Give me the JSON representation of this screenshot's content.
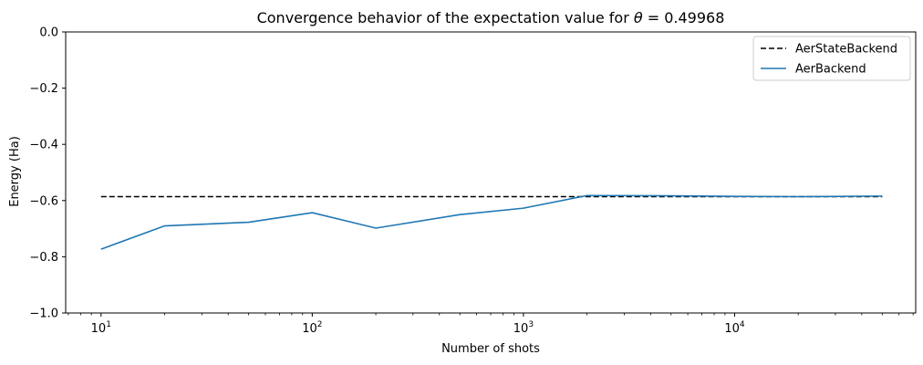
{
  "chart_data": {
    "type": "line",
    "title": "Convergence behavior of the expectation value for",
    "title_theta": "θ",
    "title_value": " = 0.49968",
    "xlabel": "Number of shots",
    "ylabel": "Energy (Ha)",
    "xscale": "log",
    "xlim": [
      6.8,
      72000
    ],
    "ylim": [
      -1.0,
      0.0
    ],
    "yticks": [
      "−1.0",
      "−0.8",
      "−0.6",
      "−0.4",
      "−0.2",
      "0.0"
    ],
    "xticks": [
      {
        "base": "10",
        "exp": "1"
      },
      {
        "base": "10",
        "exp": "2"
      },
      {
        "base": "10",
        "exp": "3"
      },
      {
        "base": "10",
        "exp": "4"
      }
    ],
    "grid": false,
    "legend_position": "top-right",
    "series": [
      {
        "name": "AerStateBackend",
        "color": "#000000",
        "dashed": true,
        "x": [
          10,
          50000
        ],
        "y": [
          -0.586,
          -0.586
        ]
      },
      {
        "name": "AerBackend",
        "color": "#1f77b4",
        "dashed": false,
        "x": [
          10,
          20,
          50,
          100,
          200,
          500,
          1000,
          2000,
          5000,
          10000,
          20000,
          50000
        ],
        "y": [
          -0.773,
          -0.69,
          -0.677,
          -0.643,
          -0.698,
          -0.65,
          -0.627,
          -0.582,
          -0.583,
          -0.585,
          -0.586,
          -0.584
        ]
      }
    ]
  }
}
